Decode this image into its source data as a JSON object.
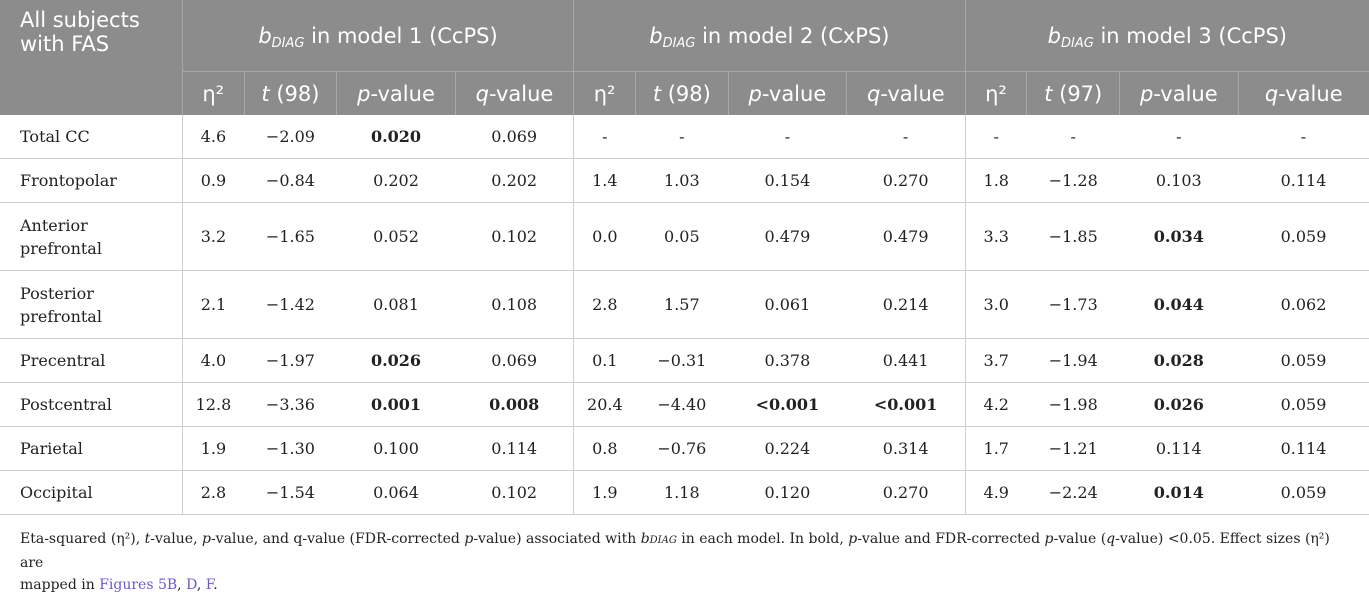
{
  "header": {
    "corner": [
      "All subjects",
      "with FAS"
    ],
    "groups": [
      {
        "b": "b",
        "sub": "DIAG",
        "rest": " in model 1 (CcPS)"
      },
      {
        "b": "b",
        "sub": "DIAG",
        "rest": " in model 2 (CxPS)"
      },
      {
        "b": "b",
        "sub": "DIAG",
        "rest": " in model 3 (CcPS)"
      }
    ],
    "sub_cols": [
      [
        {
          "a": "η²",
          "i": false
        },
        {
          "a": "t",
          "b": " (98)"
        },
        {
          "a": "p",
          "b": "-value"
        },
        {
          "a": "q",
          "b": "-value"
        }
      ],
      [
        {
          "a": "η²",
          "i": false
        },
        {
          "a": "t",
          "b": " (98)"
        },
        {
          "a": "p",
          "b": "-value"
        },
        {
          "a": "q",
          "b": "-value"
        }
      ],
      [
        {
          "a": "η²",
          "i": false
        },
        {
          "a": "t",
          "b": " (97)"
        },
        {
          "a": "p",
          "b": "-value"
        },
        {
          "a": "q",
          "b": "-value"
        }
      ]
    ]
  },
  "rows": [
    {
      "label": [
        "Total CC"
      ],
      "cells": [
        "4.6",
        "−2.09",
        "0.020",
        "0.069",
        "-",
        "-",
        "-",
        "-",
        "-",
        "-",
        "-",
        "-"
      ],
      "bold": [
        2
      ]
    },
    {
      "label": [
        "Frontopolar"
      ],
      "cells": [
        "0.9",
        "−0.84",
        "0.202",
        "0.202",
        "1.4",
        "1.03",
        "0.154",
        "0.270",
        "1.8",
        "−1.28",
        "0.103",
        "0.114"
      ],
      "bold": []
    },
    {
      "label": [
        "Anterior",
        "prefrontal"
      ],
      "cells": [
        "3.2",
        "−1.65",
        "0.052",
        "0.102",
        "0.0",
        "0.05",
        "0.479",
        "0.479",
        "3.3",
        "−1.85",
        "0.034",
        "0.059"
      ],
      "bold": [
        10
      ]
    },
    {
      "label": [
        "Posterior",
        "prefrontal"
      ],
      "cells": [
        "2.1",
        "−1.42",
        "0.081",
        "0.108",
        "2.8",
        "1.57",
        "0.061",
        "0.214",
        "3.0",
        "−1.73",
        "0.044",
        "0.062"
      ],
      "bold": [
        10
      ]
    },
    {
      "label": [
        "Precentral"
      ],
      "cells": [
        "4.0",
        "−1.97",
        "0.026",
        "0.069",
        "0.1",
        "−0.31",
        "0.378",
        "0.441",
        "3.7",
        "−1.94",
        "0.028",
        "0.059"
      ],
      "bold": [
        2,
        10
      ]
    },
    {
      "label": [
        "Postcentral"
      ],
      "cells": [
        "12.8",
        "−3.36",
        "0.001",
        "0.008",
        "20.4",
        "−4.40",
        "<0.001",
        "<0.001",
        "4.2",
        "−1.98",
        "0.026",
        "0.059"
      ],
      "bold": [
        2,
        3,
        6,
        7,
        10
      ]
    },
    {
      "label": [
        "Parietal"
      ],
      "cells": [
        "1.9",
        "−1.30",
        "0.100",
        "0.114",
        "0.8",
        "−0.76",
        "0.224",
        "0.314",
        "1.7",
        "−1.21",
        "0.114",
        "0.114"
      ],
      "bold": []
    },
    {
      "label": [
        "Occipital"
      ],
      "cells": [
        "2.8",
        "−1.54",
        "0.064",
        "0.102",
        "1.9",
        "1.18",
        "0.120",
        "0.270",
        "4.9",
        "−2.24",
        "0.014",
        "0.059"
      ],
      "bold": [
        10
      ]
    }
  ],
  "footnote": {
    "line1_a": "Eta-squared (η²), ",
    "line1_t": "t",
    "line1_b": "-value, ",
    "line1_p": "p",
    "line1_c": "-value, and q-value (FDR-corrected ",
    "line1_p2": "p",
    "line1_d": "-value) associated with ",
    "line1_bdiag": "b",
    "line1_bdiag_sub": "DIAG",
    "line1_e": " in each model. In bold, ",
    "line1_p3": "p",
    "line1_f": "-value and FDR-corrected ",
    "line1_p4": "p",
    "line1_g": "-value (",
    "line1_q": "q",
    "line1_h": "-value) <0.05. Effect sizes (η²) are",
    "line2_a": "mapped in ",
    "link1": "Figures 5B",
    "sep1": ", ",
    "link2": "D",
    "sep2": ", ",
    "link3": "F",
    "end": "."
  }
}
